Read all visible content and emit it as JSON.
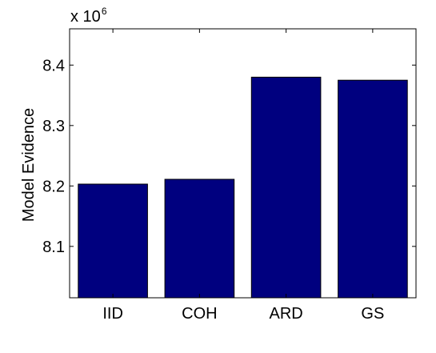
{
  "chart_data": {
    "type": "bar",
    "categories": [
      "IID",
      "COH",
      "ARD",
      "GS"
    ],
    "values": [
      8.203,
      8.211,
      8.38,
      8.375
    ],
    "ylabel": "Model Evidence",
    "xlabel": "",
    "y_multiplier": {
      "base": "x 10",
      "exponent": "6"
    },
    "ylim": [
      8.015,
      8.46
    ],
    "yticks": [
      8.1,
      8.2,
      8.3,
      8.4
    ],
    "ytick_labels": [
      "8.1",
      "8.2",
      "8.3",
      "8.4"
    ],
    "grid": false,
    "bar_color": "#00007f",
    "bar_edge_color": "#000000"
  }
}
